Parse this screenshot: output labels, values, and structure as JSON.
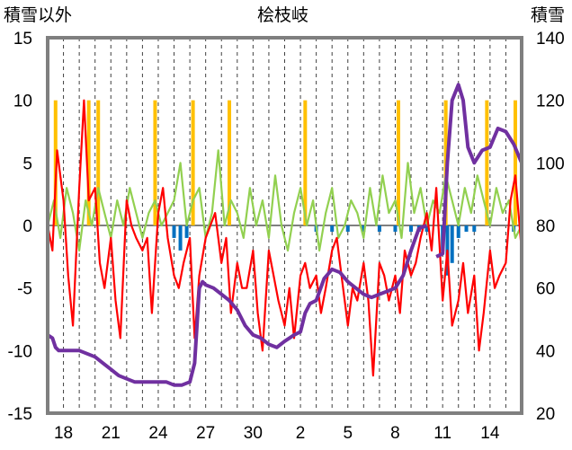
{
  "chart_data": {
    "type": "bar+line",
    "title": "桧枝岐",
    "left_axis_label": "積雪以外",
    "right_axis_label": "積雪",
    "left_ylim": [
      -15,
      15
    ],
    "left_ticks": [
      15,
      10,
      5,
      0,
      -5,
      -10,
      -15
    ],
    "right_ylim": [
      20,
      140
    ],
    "right_ticks": [
      140,
      120,
      100,
      80,
      60,
      40,
      20
    ],
    "x_tick_labels": [
      "18",
      "21",
      "24",
      "27",
      "30",
      "2",
      "5",
      "8",
      "11",
      "14"
    ],
    "x_tick_index": [
      1,
      4,
      7,
      10,
      13,
      16,
      19,
      22,
      25,
      28
    ],
    "days": 30,
    "grid": "vertical dashed daily",
    "colors": {
      "snow_depth": "#7030a0",
      "temperature": "#ff0000",
      "other_series": "#92d050",
      "precip_bars": "#ffc000",
      "snow_change_bars": "#0070c0",
      "frame": "#7f7f7f"
    },
    "series": [
      {
        "name": "snow_depth",
        "axis": "right",
        "x": [
          0,
          0.3,
          0.5,
          0.7,
          1,
          2,
          2.5,
          3,
          3.5,
          4,
          4.5,
          5,
          5.5,
          6,
          6.5,
          7,
          7.5,
          8,
          8.5,
          9,
          9.3,
          9.6,
          9.8,
          10,
          10.5,
          11,
          11.5,
          12,
          12.5,
          13,
          13.5,
          14,
          14.5,
          15,
          15.3,
          15.6,
          16,
          16.3,
          16.6,
          17,
          17.5,
          18,
          18.5,
          19,
          19.5,
          20,
          20.5,
          21,
          21.5,
          22,
          22.5,
          23,
          23.5,
          24
        ],
        "y": [
          45,
          44,
          41,
          40,
          40,
          40,
          39,
          38,
          36,
          34,
          32,
          31,
          30,
          30,
          30,
          30,
          30,
          29,
          29,
          30,
          36,
          60,
          62,
          61,
          60,
          58,
          56,
          53,
          48,
          45,
          44,
          42,
          41,
          43,
          44,
          45,
          46,
          52,
          55,
          56,
          63,
          66,
          65,
          62,
          60,
          58,
          57,
          58,
          59,
          60,
          64,
          72,
          79,
          80
        ]
      },
      {
        "name": "snow_depth_late",
        "axis": "right",
        "x": [
          24.6,
          25,
          25.3,
          25.6,
          26,
          26.3,
          26.6,
          27,
          27.5,
          28,
          28.5,
          29,
          29.5,
          30
        ],
        "y": [
          70,
          71,
          100,
          120,
          125,
          120,
          105,
          100,
          104,
          105,
          111,
          110,
          106,
          100
        ]
      },
      {
        "name": "temperature",
        "axis": "left",
        "x": [
          0,
          0.3,
          0.6,
          1,
          1.3,
          1.6,
          2,
          2.3,
          2.6,
          3,
          3.3,
          3.6,
          4,
          4.3,
          4.6,
          5,
          5.3,
          5.6,
          6,
          6.3,
          6.6,
          7,
          7.3,
          7.6,
          8,
          8.3,
          8.6,
          9,
          9.3,
          9.6,
          10,
          10.3,
          10.6,
          11,
          11.3,
          11.6,
          12,
          12.3,
          12.6,
          13,
          13.3,
          13.6,
          14,
          14.3,
          14.6,
          15,
          15.3,
          15.6,
          16,
          16.3,
          16.6,
          17,
          17.3,
          17.6,
          18,
          18.3,
          18.6,
          19,
          19.3,
          19.6,
          20,
          20.3,
          20.6,
          21,
          21.3,
          21.6,
          22,
          22.3,
          22.6,
          23,
          23.3,
          23.6,
          24,
          24.3,
          24.6,
          25,
          25.3,
          25.6,
          26,
          26.3,
          26.6,
          27,
          27.3,
          27.6,
          28,
          28.3,
          28.6,
          29,
          29.3,
          29.6,
          30
        ],
        "y": [
          0,
          -2,
          6,
          2,
          -4,
          -8,
          3,
          10,
          2,
          3,
          -3,
          -5,
          -1,
          -6,
          -9,
          2,
          0,
          -1,
          -2,
          -1,
          -7,
          1,
          3,
          -1,
          -4,
          -5,
          -3,
          -1,
          -9,
          -4,
          -1,
          0,
          1,
          -3,
          -1,
          -7,
          -3,
          -5,
          -5,
          -2,
          -7,
          -10,
          -2,
          -4,
          -6,
          -8,
          -5,
          -9,
          -4,
          -3,
          -5,
          -4,
          -7,
          -5,
          -2,
          -1,
          -4,
          -8,
          -5,
          -6,
          -3,
          -6,
          -12,
          -3,
          -4,
          -6,
          -4,
          -7,
          -2,
          -4,
          -3,
          -1,
          1,
          -2,
          3,
          -6,
          -2,
          -8,
          -6,
          -3,
          -7,
          -4,
          -10,
          -7,
          -2,
          -5,
          -4,
          -3,
          2,
          4,
          -2
        ]
      },
      {
        "name": "other_series",
        "axis": "left",
        "x": [
          0,
          0.4,
          0.8,
          1.2,
          1.6,
          2,
          2.4,
          2.8,
          3.2,
          3.6,
          4,
          4.4,
          4.8,
          5.2,
          5.6,
          6,
          6.4,
          6.8,
          7.2,
          7.6,
          8,
          8.4,
          8.8,
          9.2,
          9.6,
          10,
          10.4,
          10.8,
          11.2,
          11.6,
          12,
          12.4,
          12.8,
          13.2,
          13.6,
          14,
          14.4,
          14.8,
          15.2,
          15.6,
          16,
          16.4,
          16.8,
          17.2,
          17.6,
          18,
          18.4,
          18.8,
          19.2,
          19.6,
          20,
          20.4,
          20.8,
          21.2,
          21.6,
          22,
          22.4,
          22.8,
          23.2,
          23.6,
          24,
          24.4,
          24.8,
          25.2,
          25.6,
          26,
          26.4,
          26.8,
          27.2,
          27.6,
          28,
          28.4,
          28.8,
          29.2,
          29.6,
          30
        ],
        "y": [
          0,
          2,
          -1,
          3,
          1,
          -2,
          2,
          0,
          3,
          1,
          -1,
          2,
          0,
          3,
          1,
          -1,
          1,
          2,
          0,
          1,
          2,
          5,
          0,
          2,
          3,
          -1,
          1,
          6,
          0,
          2,
          1,
          -1,
          3,
          0,
          2,
          -1,
          4,
          0,
          -2,
          1,
          3,
          0,
          2,
          -2,
          1,
          3,
          -1,
          0,
          2,
          1,
          -1,
          3,
          0,
          4,
          1,
          2,
          -1,
          5,
          1,
          3,
          0,
          2,
          1,
          4,
          2,
          0,
          3,
          1,
          4,
          2,
          0,
          3,
          1,
          2,
          -1,
          0
        ]
      }
    ],
    "precip_bars": {
      "x": [
        0.5,
        2.6,
        3.2,
        6.8,
        9.2,
        11.5,
        16.3,
        22.2,
        25.2,
        27.8,
        29.6
      ],
      "values": [
        10,
        10,
        10,
        10,
        10,
        10,
        10,
        10,
        10,
        10,
        10
      ]
    },
    "snow_change_bars": {
      "x": [
        8,
        8.4,
        8.8,
        17,
        18,
        19,
        20,
        21,
        22,
        23,
        23.5,
        24,
        25,
        25.3,
        25.6,
        26,
        26.5,
        27,
        29.5,
        30
      ],
      "values": [
        -1,
        -2,
        -1,
        -0.5,
        -0.5,
        -0.5,
        -0.5,
        -0.5,
        -0.5,
        -0.5,
        -0.5,
        -0.5,
        -2,
        -4,
        -3,
        -1,
        -0.5,
        -0.5,
        -0.5,
        -0.5
      ]
    }
  }
}
